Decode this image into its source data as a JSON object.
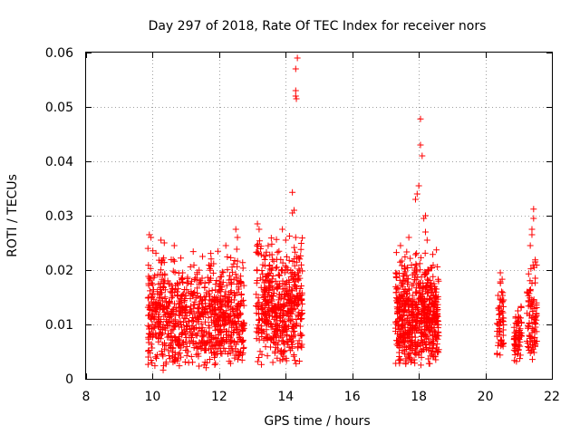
{
  "chart_data": {
    "type": "scatter",
    "title": "Day 297 of 2018, Rate Of TEC Index for receiver nors",
    "xlabel": "GPS time / hours",
    "ylabel": "ROTI / TECUs",
    "xlim": [
      8,
      22
    ],
    "ylim": [
      0,
      0.06
    ],
    "xticks": [
      8,
      10,
      12,
      14,
      16,
      18,
      20,
      22
    ],
    "yticks": [
      0,
      0.01,
      0.02,
      0.03,
      0.04,
      0.05,
      0.06
    ],
    "xtick_labels": [
      "8",
      "10",
      "12",
      "14",
      "16",
      "18",
      "20",
      "22"
    ],
    "ytick_labels": [
      "0",
      "0.01",
      "0.02",
      "0.03",
      "0.04",
      "0.05",
      "0.06"
    ],
    "grid": true,
    "marker": "+",
    "color": "#ff0000",
    "series": [
      {
        "name": "ROTI",
        "segments": [
          {
            "x_start": 9.85,
            "x_end": 12.75,
            "y_low": 0.0015,
            "y_high": 0.025,
            "count": 900
          },
          {
            "x_start": 13.1,
            "x_end": 14.5,
            "y_low": 0.0025,
            "y_high": 0.027,
            "count": 520
          },
          {
            "x_start": 17.3,
            "x_end": 18.6,
            "y_low": 0.002,
            "y_high": 0.025,
            "count": 620
          },
          {
            "x_start": 20.35,
            "x_end": 20.55,
            "y_low": 0.003,
            "y_high": 0.02,
            "count": 60
          },
          {
            "x_start": 20.85,
            "x_end": 21.1,
            "y_low": 0.0025,
            "y_high": 0.015,
            "count": 70
          },
          {
            "x_start": 21.25,
            "x_end": 21.55,
            "y_low": 0.003,
            "y_high": 0.022,
            "count": 90
          }
        ],
        "highlights": [
          {
            "x": 9.9,
            "y": 0.0265
          },
          {
            "x": 9.95,
            "y": 0.026
          },
          {
            "x": 10.25,
            "y": 0.0255
          },
          {
            "x": 10.35,
            "y": 0.025
          },
          {
            "x": 10.65,
            "y": 0.0245
          },
          {
            "x": 11.5,
            "y": 0.0225
          },
          {
            "x": 12.2,
            "y": 0.0245
          },
          {
            "x": 12.5,
            "y": 0.0275
          },
          {
            "x": 12.55,
            "y": 0.026
          },
          {
            "x": 13.15,
            "y": 0.0285
          },
          {
            "x": 13.2,
            "y": 0.0275
          },
          {
            "x": 13.9,
            "y": 0.0275
          },
          {
            "x": 14.0,
            "y": 0.0255
          },
          {
            "x": 14.2,
            "y": 0.0343
          },
          {
            "x": 14.25,
            "y": 0.031
          },
          {
            "x": 14.2,
            "y": 0.0305
          },
          {
            "x": 14.3,
            "y": 0.026
          },
          {
            "x": 14.3,
            "y": 0.052
          },
          {
            "x": 14.3,
            "y": 0.053
          },
          {
            "x": 14.32,
            "y": 0.0515
          },
          {
            "x": 14.3,
            "y": 0.057
          },
          {
            "x": 14.35,
            "y": 0.059
          },
          {
            "x": 17.45,
            "y": 0.0245
          },
          {
            "x": 17.7,
            "y": 0.026
          },
          {
            "x": 17.9,
            "y": 0.033
          },
          {
            "x": 17.95,
            "y": 0.034
          },
          {
            "x": 18.0,
            "y": 0.0355
          },
          {
            "x": 18.05,
            "y": 0.0478
          },
          {
            "x": 18.05,
            "y": 0.043
          },
          {
            "x": 18.1,
            "y": 0.041
          },
          {
            "x": 18.15,
            "y": 0.0295
          },
          {
            "x": 18.2,
            "y": 0.03
          },
          {
            "x": 18.2,
            "y": 0.027
          },
          {
            "x": 18.25,
            "y": 0.0255
          },
          {
            "x": 20.45,
            "y": 0.0195
          },
          {
            "x": 21.3,
            "y": 0.0193
          },
          {
            "x": 21.35,
            "y": 0.0245
          },
          {
            "x": 21.4,
            "y": 0.0265
          },
          {
            "x": 21.4,
            "y": 0.0275
          },
          {
            "x": 21.45,
            "y": 0.0295
          },
          {
            "x": 21.45,
            "y": 0.0312
          },
          {
            "x": 21.5,
            "y": 0.0215
          },
          {
            "x": 21.5,
            "y": 0.0185
          }
        ]
      }
    ]
  }
}
